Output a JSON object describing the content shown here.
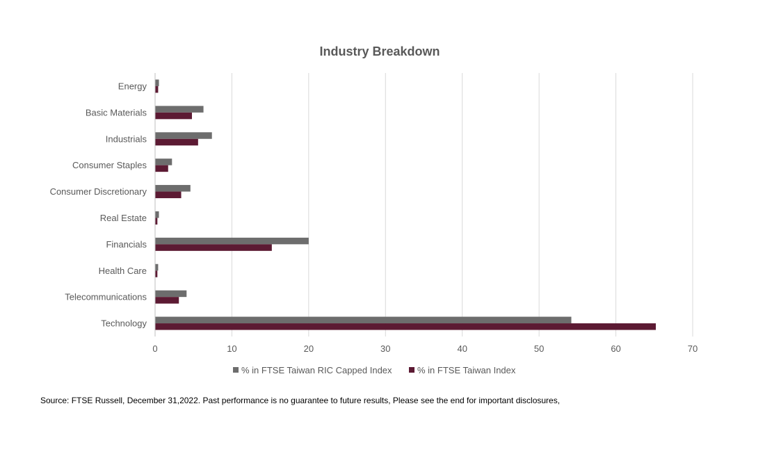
{
  "chart_data": {
    "type": "bar",
    "orientation": "horizontal",
    "title": "Industry Breakdown",
    "categories": [
      "Energy",
      "Basic Materials",
      "Industrials",
      "Consumer Staples",
      "Consumer Discretionary",
      "Real Estate",
      "Financials",
      "Health Care",
      "Telecommunications",
      "Technology"
    ],
    "series": [
      {
        "name": "% in FTSE Taiwan RIC Capped Index",
        "color": "#6d6d6d",
        "values": [
          0.5,
          6.3,
          7.4,
          2.2,
          4.6,
          0.5,
          20.0,
          0.4,
          4.1,
          54.2
        ]
      },
      {
        "name": "% in FTSE Taiwan Index",
        "color": "#5c1a33",
        "values": [
          0.4,
          4.8,
          5.6,
          1.7,
          3.4,
          0.3,
          15.2,
          0.3,
          3.1,
          65.2
        ]
      }
    ],
    "xlim": [
      0,
      70
    ],
    "xticks": [
      "0",
      "10",
      "20",
      "30",
      "40",
      "50",
      "60",
      "70"
    ],
    "grid": true,
    "legend_position": "bottom"
  },
  "footer": {
    "source": "Source: FTSE Russell, December 31,2022. Past performance is no guarantee to future results, Please see the end for important disclosures,"
  }
}
